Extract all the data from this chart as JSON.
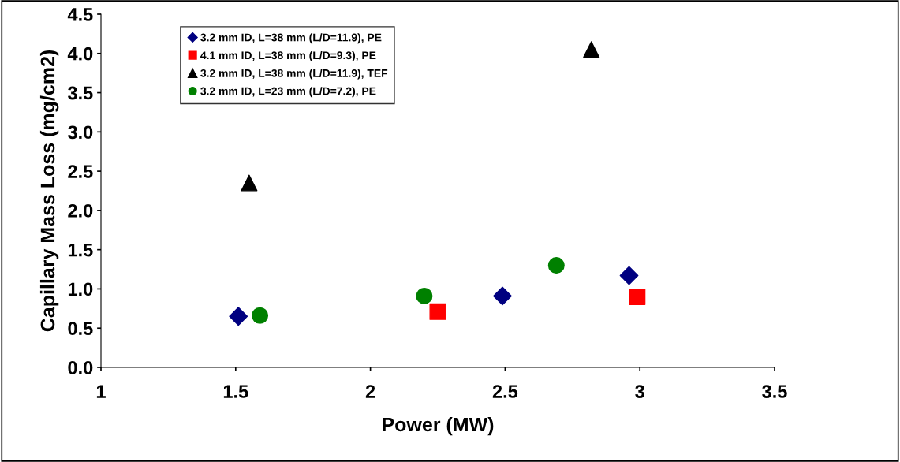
{
  "chart_data": {
    "type": "scatter",
    "xlabel": "Power (MW)",
    "ylabel": "Capillary Mass Loss (mg/cm2)",
    "xlim": [
      1,
      3.5
    ],
    "xticks": [
      1,
      1.5,
      2,
      2.5,
      3,
      3.5
    ],
    "ylim": [
      0,
      4.5
    ],
    "yticks": [
      {
        "value": 0,
        "label": "0.0"
      },
      {
        "value": 0.5,
        "label": "0.5"
      },
      {
        "value": 1,
        "label": "1.0"
      },
      {
        "value": 1.5,
        "label": "1.5"
      },
      {
        "value": 2,
        "label": "2.0"
      },
      {
        "value": 2.5,
        "label": "2.5"
      },
      {
        "value": 3,
        "label": "3.0"
      },
      {
        "value": 3.5,
        "label": "3.5"
      },
      {
        "value": 4,
        "label": "4.0"
      },
      {
        "value": 4.5,
        "label": "4.5"
      }
    ],
    "grid": false,
    "legend": "top left",
    "series": [
      {
        "name": "3.2 mm ID, L=38 mm (L/D=11.9), PE",
        "color": "#000080",
        "marker": "diamond",
        "x": [
          1.51,
          2.49,
          2.96
        ],
        "values": [
          0.65,
          0.91,
          1.17
        ]
      },
      {
        "name": "4.1 mm ID, L=38 mm (L/D=9.3), PE",
        "color": "#ff0000",
        "marker": "square",
        "x": [
          2.25,
          2.99
        ],
        "values": [
          0.71,
          0.9
        ]
      },
      {
        "name": "3.2 mm ID, L=38 mm (L/D=11.9), TEF",
        "color": "#000000",
        "marker": "triangle",
        "x": [
          1.55,
          2.82
        ],
        "values": [
          2.35,
          4.05
        ]
      },
      {
        "name": "3.2 mm ID, L=23 mm (L/D=7.2), PE",
        "color": "#008000",
        "marker": "circle",
        "x": [
          1.59,
          2.2,
          2.69
        ],
        "values": [
          0.66,
          0.91,
          1.3
        ]
      }
    ]
  }
}
